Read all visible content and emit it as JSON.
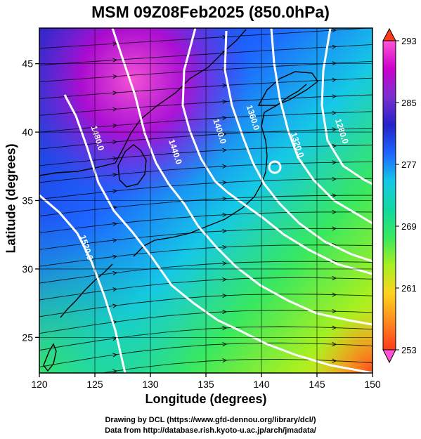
{
  "title": "MSM 09Z08Feb2025 (850.0hPa)",
  "credits": {
    "line1": "Drawing by DCL (https://www.gfd-dennou.org/library/dcl/)",
    "line2": "Data from http://database.rish.kyoto-u.ac.jp/arch/jmadata/"
  },
  "chart_data": {
    "type": "heatmap",
    "title": "MSM 09Z08Feb2025 (850.0hPa)",
    "xlabel": "Longitude (degrees)",
    "ylabel": "Latitude  (degrees)",
    "xlim": [
      120,
      150
    ],
    "ylim": [
      22.4,
      47.6
    ],
    "x_ticks": [
      120,
      125,
      130,
      135,
      140,
      145,
      150
    ],
    "y_ticks": [
      25,
      30,
      35,
      40,
      45
    ],
    "grid": true,
    "colorbar": {
      "range": [
        253,
        293
      ],
      "ticks": [
        253,
        261,
        269,
        277,
        285,
        293
      ],
      "placement": "right",
      "colors": [
        "#ff55d4",
        "#cc00cc",
        "#7a2fd0",
        "#2323c8",
        "#1e64ff",
        "#15c8e6",
        "#10d8a0",
        "#38e860",
        "#a8f020",
        "#ffd21e",
        "#ff8a20",
        "#ff3a1a"
      ]
    },
    "contours": [
      {
        "label": "1520.0",
        "x": 124.0,
        "y": 31.5
      },
      {
        "label": "1480.0",
        "x": 125.0,
        "y": 39.5
      },
      {
        "label": "1440.0",
        "x": 132.0,
        "y": 38.5
      },
      {
        "label": "1400.0",
        "x": 136.0,
        "y": 40.0
      },
      {
        "label": "1360.0",
        "x": 139.0,
        "y": 41.0
      },
      {
        "label": "1320.0",
        "x": 143.0,
        "y": 39.0
      },
      {
        "label": "1280.0",
        "x": 147.0,
        "y": 40.0
      }
    ]
  }
}
